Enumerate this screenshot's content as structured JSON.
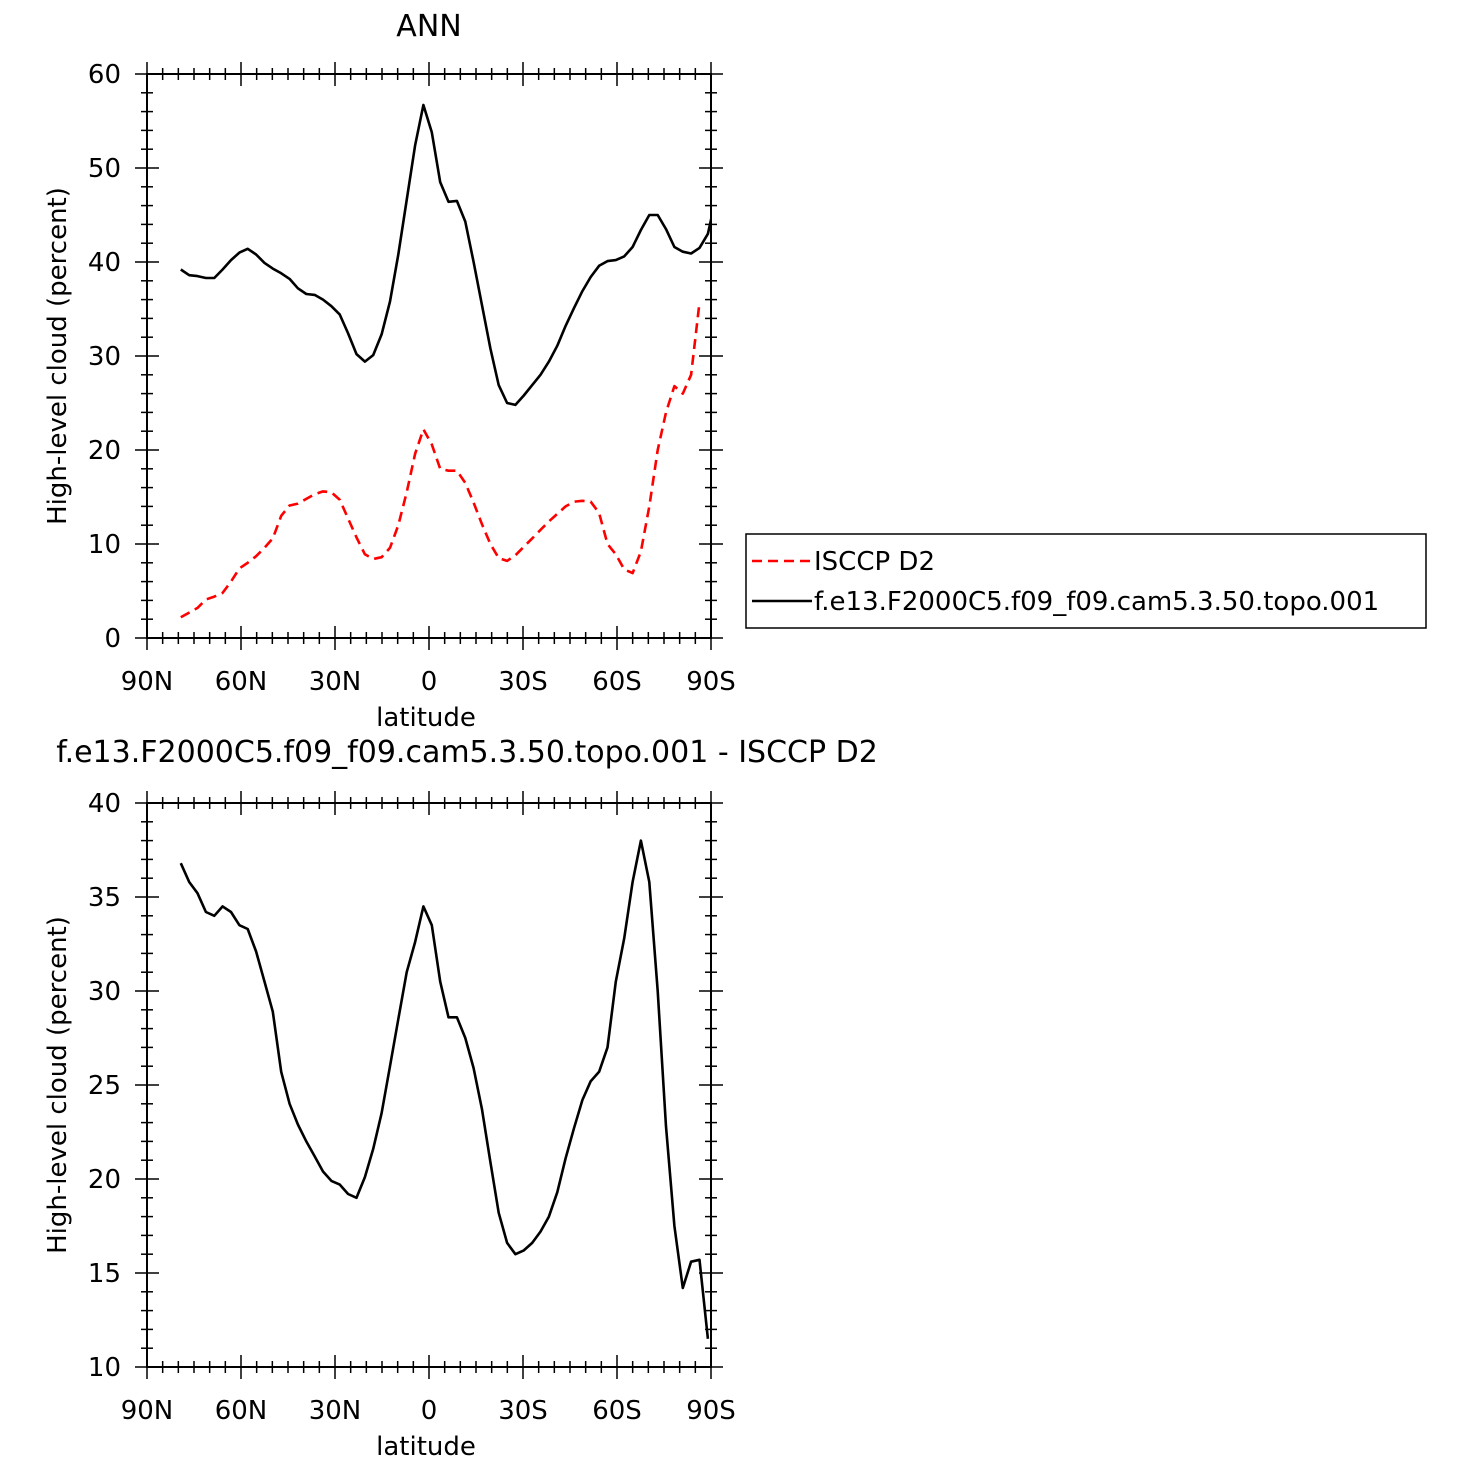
{
  "chart_data": [
    {
      "type": "line",
      "title": "ANN",
      "xlabel": "latitude",
      "ylabel": "High-level cloud (percent)",
      "xlim": [
        -90,
        90
      ],
      "ylim": [
        0,
        60
      ],
      "xticks": [
        {
          "value": -90,
          "label": "90N"
        },
        {
          "value": -60,
          "label": "60N"
        },
        {
          "value": -30,
          "label": "30N"
        },
        {
          "value": 0,
          "label": "0"
        },
        {
          "value": 30,
          "label": "30S"
        },
        {
          "value": 60,
          "label": "60S"
        },
        {
          "value": 90,
          "label": "90S"
        }
      ],
      "yticks": [
        0,
        10,
        20,
        30,
        40,
        50,
        60
      ],
      "legend_position": "right",
      "series": [
        {
          "name": "ISCCP D2",
          "color": "#ff0000",
          "dash": "dashed",
          "points": [
            [
              -89,
              2.2
            ],
            [
              -86,
              2.7
            ],
            [
              -83,
              3.2
            ],
            [
              -80,
              4.1
            ],
            [
              -77,
              4.4
            ],
            [
              -74,
              4.8
            ],
            [
              -71,
              6.0
            ],
            [
              -68,
              7.4
            ],
            [
              -65,
              8.0
            ],
            [
              -62,
              8.7
            ],
            [
              -59,
              9.6
            ],
            [
              -56,
              10.6
            ],
            [
              -53,
              13.0
            ],
            [
              -50,
              14.1
            ],
            [
              -47,
              14.3
            ],
            [
              -44,
              14.8
            ],
            [
              -41,
              15.3
            ],
            [
              -38,
              15.6
            ],
            [
              -35,
              15.5
            ],
            [
              -32,
              14.7
            ],
            [
              -29,
              12.7
            ],
            [
              -26,
              10.7
            ],
            [
              -23,
              8.9
            ],
            [
              -20,
              8.4
            ],
            [
              -17,
              8.6
            ],
            [
              -14,
              9.6
            ],
            [
              -11,
              12.0
            ],
            [
              -8,
              15.5
            ],
            [
              -5,
              19.6
            ],
            [
              -2,
              22.2
            ],
            [
              1,
              20.6
            ],
            [
              4,
              18.0
            ],
            [
              7,
              17.8
            ],
            [
              10,
              17.8
            ],
            [
              13,
              16.5
            ],
            [
              16,
              14.4
            ],
            [
              19,
              12.1
            ],
            [
              22,
              10.0
            ],
            [
              25,
              8.5
            ],
            [
              28,
              8.2
            ],
            [
              31,
              8.8
            ],
            [
              34,
              9.7
            ],
            [
              37,
              10.6
            ],
            [
              40,
              11.5
            ],
            [
              43,
              12.4
            ],
            [
              46,
              13.2
            ],
            [
              49,
              14.0
            ],
            [
              52,
              14.5
            ],
            [
              55,
              14.6
            ],
            [
              58,
              14.5
            ],
            [
              61,
              13.3
            ],
            [
              64,
              10.0
            ],
            [
              67,
              8.9
            ],
            [
              70,
              7.3
            ],
            [
              73,
              6.9
            ],
            [
              76,
              9.2
            ],
            [
              79,
              14.0
            ],
            [
              82,
              20.0
            ],
            [
              85,
              24.0
            ],
            [
              88,
              26.8
            ],
            [
              91,
              26.0
            ],
            [
              94,
              28.0
            ],
            [
              97,
              35.7
            ]
          ]
        },
        {
          "name": "f.e13.F2000C5.f09_f09.cam5.3.50.topo.001",
          "color": "#000000",
          "dash": "solid",
          "points": [
            [
              -89,
              39.2
            ],
            [
              -86,
              38.6
            ],
            [
              -83,
              38.5
            ],
            [
              -80,
              38.3
            ],
            [
              -77,
              38.3
            ],
            [
              -74,
              39.2
            ],
            [
              -71,
              40.2
            ],
            [
              -68,
              41.0
            ],
            [
              -65,
              41.4
            ],
            [
              -62,
              40.8
            ],
            [
              -59,
              39.9
            ],
            [
              -56,
              39.3
            ],
            [
              -53,
              38.8
            ],
            [
              -50,
              38.2
            ],
            [
              -47,
              37.2
            ],
            [
              -44,
              36.6
            ],
            [
              -41,
              36.5
            ],
            [
              -38,
              36.0
            ],
            [
              -35,
              35.3
            ],
            [
              -32,
              34.4
            ],
            [
              -29,
              32.4
            ],
            [
              -26,
              30.2
            ],
            [
              -23,
              29.4
            ],
            [
              -20,
              30.1
            ],
            [
              -17,
              32.3
            ],
            [
              -14,
              35.8
            ],
            [
              -11,
              40.8
            ],
            [
              -8,
              46.6
            ],
            [
              -5,
              52.4
            ],
            [
              -2,
              56.7
            ],
            [
              1,
              53.8
            ],
            [
              4,
              48.5
            ],
            [
              7,
              46.4
            ],
            [
              10,
              46.5
            ],
            [
              13,
              44.3
            ],
            [
              16,
              40.0
            ],
            [
              19,
              35.4
            ],
            [
              22,
              30.8
            ],
            [
              25,
              26.9
            ],
            [
              28,
              25.0
            ],
            [
              31,
              24.8
            ],
            [
              34,
              25.8
            ],
            [
              37,
              26.9
            ],
            [
              40,
              28.0
            ],
            [
              43,
              29.4
            ],
            [
              46,
              31.1
            ],
            [
              49,
              33.2
            ],
            [
              52,
              35.1
            ],
            [
              55,
              36.9
            ],
            [
              58,
              38.4
            ],
            [
              61,
              39.6
            ],
            [
              64,
              40.1
            ],
            [
              67,
              40.2
            ],
            [
              70,
              40.6
            ],
            [
              73,
              41.6
            ],
            [
              76,
              43.4
            ],
            [
              79,
              45.0
            ],
            [
              82,
              45.0
            ],
            [
              85,
              43.5
            ],
            [
              88,
              41.6
            ],
            [
              91,
              41.1
            ],
            [
              94,
              40.9
            ],
            [
              97,
              41.5
            ],
            [
              100,
              43.0
            ],
            [
              103,
              47.0
            ]
          ]
        }
      ]
    },
    {
      "type": "line",
      "title": "f.e13.F2000C5.f09_f09.cam5.3.50.topo.001 - ISCCP D2",
      "xlabel": "latitude",
      "ylabel": "High-level cloud (percent)",
      "xlim": [
        -90,
        90
      ],
      "ylim": [
        10,
        40
      ],
      "xticks": [
        {
          "value": -90,
          "label": "90N"
        },
        {
          "value": -60,
          "label": "60N"
        },
        {
          "value": -30,
          "label": "30N"
        },
        {
          "value": 0,
          "label": "0"
        },
        {
          "value": 30,
          "label": "30S"
        },
        {
          "value": 60,
          "label": "60S"
        },
        {
          "value": 90,
          "label": "90S"
        }
      ],
      "yticks": [
        10,
        15,
        20,
        25,
        30,
        35,
        40
      ],
      "series": [
        {
          "color": "#000000",
          "dash": "solid",
          "points": [
            [
              -89,
              36.8
            ],
            [
              -86,
              35.8
            ],
            [
              -83,
              35.2
            ],
            [
              -80,
              34.2
            ],
            [
              -77,
              34.0
            ],
            [
              -74,
              34.5
            ],
            [
              -71,
              34.2
            ],
            [
              -68,
              33.5
            ],
            [
              -65,
              33.3
            ],
            [
              -62,
              32.1
            ],
            [
              -59,
              30.5
            ],
            [
              -56,
              28.9
            ],
            [
              -53,
              25.7
            ],
            [
              -50,
              24.0
            ],
            [
              -47,
              22.9
            ],
            [
              -44,
              22.0
            ],
            [
              -41,
              21.2
            ],
            [
              -38,
              20.4
            ],
            [
              -35,
              19.9
            ],
            [
              -32,
              19.7
            ],
            [
              -29,
              19.2
            ],
            [
              -26,
              19.0
            ],
            [
              -23,
              20.1
            ],
            [
              -20,
              21.6
            ],
            [
              -17,
              23.5
            ],
            [
              -14,
              26.0
            ],
            [
              -11,
              28.5
            ],
            [
              -8,
              31.0
            ],
            [
              -5,
              32.6
            ],
            [
              -2,
              34.5
            ],
            [
              1,
              33.5
            ],
            [
              4,
              30.5
            ],
            [
              7,
              28.6
            ],
            [
              10,
              28.6
            ],
            [
              13,
              27.5
            ],
            [
              16,
              25.9
            ],
            [
              19,
              23.7
            ],
            [
              22,
              20.9
            ],
            [
              25,
              18.2
            ],
            [
              28,
              16.6
            ],
            [
              31,
              16.0
            ],
            [
              34,
              16.2
            ],
            [
              37,
              16.6
            ],
            [
              40,
              17.2
            ],
            [
              43,
              18.0
            ],
            [
              46,
              19.3
            ],
            [
              49,
              21.1
            ],
            [
              52,
              22.7
            ],
            [
              55,
              24.2
            ],
            [
              58,
              25.2
            ],
            [
              61,
              25.7
            ],
            [
              64,
              27.0
            ],
            [
              67,
              30.5
            ],
            [
              70,
              32.8
            ],
            [
              73,
              35.8
            ],
            [
              76,
              38.0
            ],
            [
              79,
              35.8
            ],
            [
              82,
              30.0
            ],
            [
              85,
              22.8
            ],
            [
              88,
              17.5
            ],
            [
              91,
              14.2
            ],
            [
              94,
              15.6
            ],
            [
              97,
              15.7
            ],
            [
              100,
              11.5
            ]
          ]
        }
      ]
    }
  ]
}
